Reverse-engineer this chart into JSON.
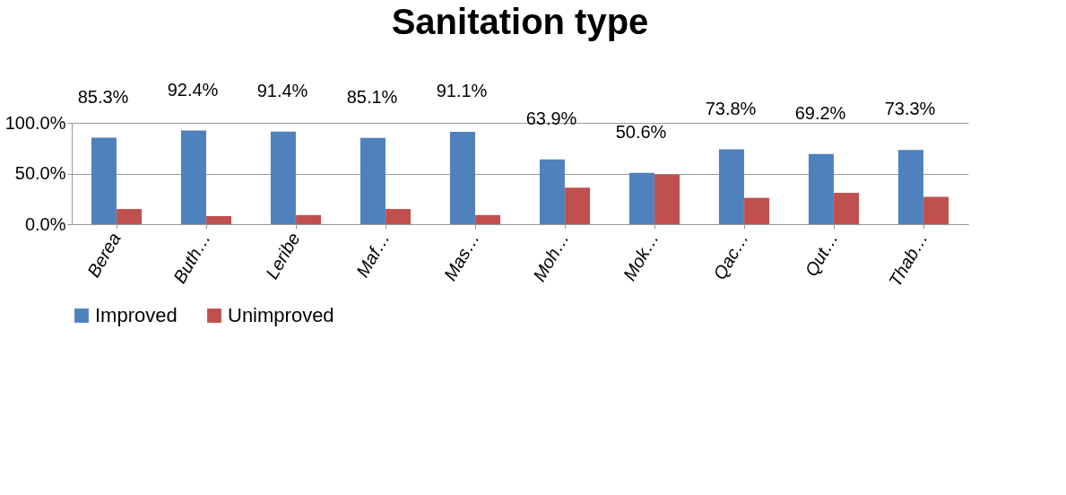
{
  "chart_data": {
    "type": "bar",
    "title": "Sanitation type",
    "categories": [
      "Berea",
      "Buth…",
      "Leribe",
      "Maf…",
      "Mas…",
      "Moh…",
      "Mok…",
      "Qac…",
      "Qut…",
      "Thab…"
    ],
    "series": [
      {
        "name": "Improved",
        "color": "#4f81bd",
        "values": [
          85.3,
          92.4,
          91.4,
          85.1,
          91.1,
          63.9,
          50.6,
          73.8,
          69.2,
          73.3
        ],
        "value_labels": [
          "85.3%",
          "92.4%",
          "91.4%",
          "85.1%",
          "91.1%",
          "63.9%",
          "50.6%",
          "73.8%",
          "69.2%",
          "73.3%"
        ]
      },
      {
        "name": "Unimproved",
        "color": "#c0504d",
        "values": [
          15,
          8,
          9,
          15,
          9,
          36,
          49,
          26,
          31,
          27
        ]
      }
    ],
    "ylim": [
      0,
      100
    ],
    "yticks": [
      {
        "value": 0,
        "label": "0.0%"
      },
      {
        "value": 50,
        "label": "50.0%"
      },
      {
        "value": 100,
        "label": "100.0%"
      }
    ],
    "grid": "y",
    "legend": "bottom"
  }
}
